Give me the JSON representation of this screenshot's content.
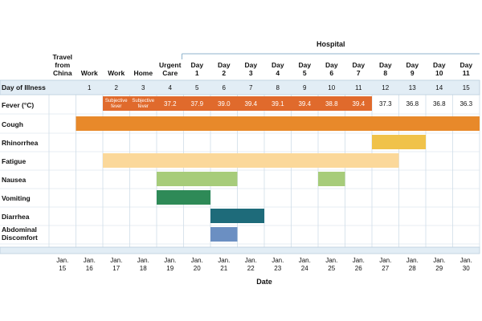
{
  "chart_data": {
    "type": "table",
    "hospital_label": "Hospital",
    "location_headers": [
      [
        "Travel",
        "from",
        "China"
      ],
      [
        "Work"
      ],
      [
        "Work"
      ],
      [
        "Home"
      ],
      [
        "Urgent",
        "Care"
      ],
      [
        "Day",
        "1"
      ],
      [
        "Day",
        "2"
      ],
      [
        "Day",
        "3"
      ],
      [
        "Day",
        "4"
      ],
      [
        "Day",
        "5"
      ],
      [
        "Day",
        "6"
      ],
      [
        "Day",
        "7"
      ],
      [
        "Day",
        "8"
      ],
      [
        "Day",
        "9"
      ],
      [
        "Day",
        "10"
      ],
      [
        "Day",
        "11"
      ]
    ],
    "day_of_illness_label": "Day of Illness",
    "day_of_illness": [
      "",
      "1",
      "2",
      "3",
      "4",
      "5",
      "6",
      "7",
      "8",
      "9",
      "10",
      "11",
      "12",
      "13",
      "14",
      "15"
    ],
    "fever_label": "Fever (°C)",
    "fever": [
      {
        "col": 2,
        "text": [
          "Subjective",
          "fever"
        ]
      },
      {
        "col": 3,
        "text": [
          "Subjective",
          "fever"
        ]
      },
      {
        "col": 4,
        "text": [
          "37.2"
        ]
      },
      {
        "col": 5,
        "text": [
          "37.9"
        ]
      },
      {
        "col": 6,
        "text": [
          "39.0"
        ]
      },
      {
        "col": 7,
        "text": [
          "39.4"
        ]
      },
      {
        "col": 8,
        "text": [
          "39.1"
        ]
      },
      {
        "col": 9,
        "text": [
          "39.4"
        ]
      },
      {
        "col": 10,
        "text": [
          "38.8"
        ]
      },
      {
        "col": 11,
        "text": [
          "39.4"
        ]
      },
      {
        "col": 12,
        "text": [
          "37.3"
        ]
      },
      {
        "col": 13,
        "text": [
          "36.8"
        ]
      },
      {
        "col": 14,
        "text": [
          "36.8"
        ]
      },
      {
        "col": 15,
        "text": [
          "36.3"
        ]
      }
    ],
    "fever_bar": {
      "start": 2,
      "end": 11,
      "color": "#e06a2c"
    },
    "symptoms": [
      {
        "label": [
          "Cough"
        ],
        "start": 1,
        "end": 15,
        "color": "#e8892a"
      },
      {
        "label": [
          "Rhinorrhea"
        ],
        "start": 12,
        "end": 13,
        "color": "#f0c24a"
      },
      {
        "label": [
          "Fatigue"
        ],
        "start": 2,
        "end": 12,
        "color": "#fbd89a"
      },
      {
        "label": [
          "Nausea"
        ],
        "start": 4,
        "end": 6,
        "color": "#a7cc7a"
      },
      {
        "label": [
          "Nausea-2"
        ],
        "start": 10,
        "end": 10,
        "color": "#a7cc7a",
        "continuation": true
      },
      {
        "label": [
          "Vomiting"
        ],
        "start": 4,
        "end": 5,
        "color": "#2e8a57"
      },
      {
        "label": [
          "Diarrhea"
        ],
        "start": 6,
        "end": 7,
        "color": "#1e6b7a"
      },
      {
        "label": [
          "Abdominal",
          "Discomfort"
        ],
        "start": 6,
        "end": 6,
        "color": "#6b8fc2"
      }
    ],
    "dates": [
      [
        "Jan.",
        "15"
      ],
      [
        "Jan.",
        "16"
      ],
      [
        "Jan.",
        "17"
      ],
      [
        "Jan.",
        "18"
      ],
      [
        "Jan.",
        "19"
      ],
      [
        "Jan.",
        "20"
      ],
      [
        "Jan.",
        "21"
      ],
      [
        "Jan.",
        "22"
      ],
      [
        "Jan.",
        "23"
      ],
      [
        "Jan.",
        "24"
      ],
      [
        "Jan.",
        "25"
      ],
      [
        "Jan.",
        "26"
      ],
      [
        "Jan.",
        "27"
      ],
      [
        "Jan.",
        "28"
      ],
      [
        "Jan.",
        "29"
      ],
      [
        "Jan.",
        "30"
      ]
    ],
    "xlabel": "Date",
    "colors": {
      "band": "#e2edf5",
      "band_border": "#b9cedd",
      "grid": "#d0dde8",
      "hospital_line": "#8fb3cc"
    }
  }
}
